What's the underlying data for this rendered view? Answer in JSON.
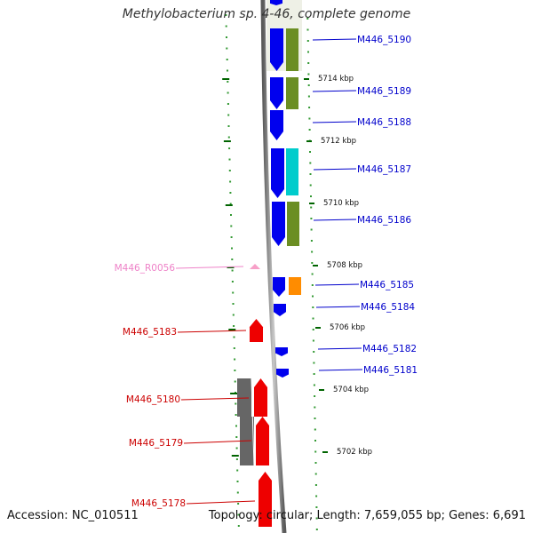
{
  "title": "Methylobacterium sp. 4-46, complete genome",
  "accession": "Accession: NC_010511",
  "summary": "Topology: circular; Length: 7,659,055 bp; Genes: 6,691",
  "ticks": [
    "5714 kbp",
    "5712 kbp",
    "5710 kbp",
    "5708 kbp",
    "5706 kbp",
    "5704 kbp",
    "5702 kbp"
  ],
  "genes_right": [
    "M446_5190",
    "M446_5189",
    "M446_5188",
    "M446_5187",
    "M446_5186",
    "M446_5185",
    "M446_5184",
    "M446_5182",
    "M446_5181"
  ],
  "genes_left": [
    "M446_R0056",
    "M446_5183",
    "M446_5180",
    "M446_5179",
    "M446_5178"
  ],
  "colors": {
    "forward_cds": "#0000ee",
    "reverse_cds": "#ee0000",
    "rna": "#f7a0c8",
    "cog_olive": "#6b8e23",
    "cog_cyan": "#00cccc",
    "cog_orange": "#ff8c00",
    "cog_gray": "#666666",
    "right_label": "#0000cc",
    "left_label": "#cc0000",
    "rna_label": "#ee82c8",
    "tick_color": "#006400",
    "backbone": "#888888"
  }
}
